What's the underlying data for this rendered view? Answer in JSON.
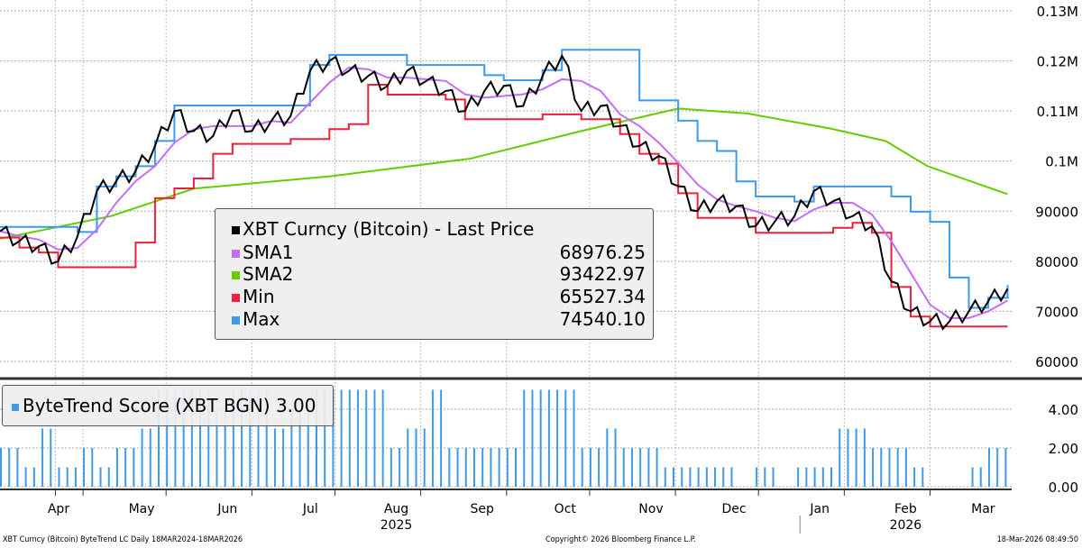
{
  "chart_data": {
    "type": "line",
    "title": "XBT Curncy (Bitcoin) ByteTrend LC Daily 18MAR2024-18MAR2026",
    "x_unit": "days from 18-Mar-2025",
    "price_axis": {
      "ylim": [
        57000,
        133000
      ],
      "ticks": [
        {
          "v": 130000,
          "label": "0.13M"
        },
        {
          "v": 120000,
          "label": "0.12M"
        },
        {
          "v": 110000,
          "label": "0.11M"
        },
        {
          "v": 100000,
          "label": "0.1M"
        },
        {
          "v": 90000,
          "label": "90000"
        },
        {
          "v": 80000,
          "label": "80000"
        },
        {
          "v": 70000,
          "label": "70000"
        },
        {
          "v": 60000,
          "label": "60000"
        }
      ]
    },
    "score_axis": {
      "ylim": [
        0,
        5.4
      ],
      "ticks": [
        {
          "v": 4,
          "label": "4.00"
        },
        {
          "v": 2,
          "label": "2.00"
        },
        {
          "v": 0,
          "label": "0.00"
        }
      ]
    },
    "months": [
      {
        "d": 14,
        "label": "Apr"
      },
      {
        "d": 44,
        "label": "May"
      },
      {
        "d": 75,
        "label": "Jun"
      },
      {
        "d": 105,
        "label": "Jul"
      },
      {
        "d": 136,
        "label": "Aug"
      },
      {
        "d": 167,
        "label": "Sep"
      },
      {
        "d": 197,
        "label": "Oct"
      },
      {
        "d": 228,
        "label": "Nov"
      },
      {
        "d": 258,
        "label": "Dec"
      },
      {
        "d": 289,
        "label": "Jan"
      },
      {
        "d": 320,
        "label": "Feb"
      },
      {
        "d": 348,
        "label": "Mar"
      }
    ],
    "years": [
      {
        "d": 136,
        "label": "2025"
      },
      {
        "d": 320,
        "label": "2026"
      }
    ],
    "year_divider_day": 289,
    "price": {
      "name": "XBT Curncy (Bitcoin) - Last Price",
      "color": "#000000",
      "step_days": 7,
      "values": [
        86000,
        84000,
        83000,
        80000,
        85000,
        94000,
        96000,
        98000,
        103000,
        110000,
        106000,
        105000,
        110000,
        106000,
        108000,
        109000,
        118000,
        120000,
        118000,
        117000,
        115000,
        118000,
        116000,
        114000,
        110000,
        114000,
        115000,
        111000,
        117000,
        121000,
        110000,
        111000,
        107000,
        103000,
        101000,
        95000,
        90000,
        92000,
        91000,
        87000,
        88000,
        89000,
        94000,
        92000,
        89000,
        87000,
        76000,
        70000,
        68000,
        68000,
        70000,
        72000,
        74500
      ]
    },
    "sma1": {
      "name": "SMA1",
      "value": "68976.25",
      "color": "#c36ef5",
      "window_points": 3
    },
    "sma2": {
      "name": "SMA2",
      "value": "93422.97",
      "color": "#66cc00",
      "points": [
        [
          0,
          84500
        ],
        [
          40,
          89000
        ],
        [
          70,
          94500
        ],
        [
          120,
          97000
        ],
        [
          170,
          100500
        ],
        [
          210,
          106000
        ],
        [
          245,
          110500
        ],
        [
          270,
          109500
        ],
        [
          300,
          106500
        ],
        [
          320,
          104000
        ],
        [
          335,
          99000
        ],
        [
          364,
          93400
        ]
      ]
    },
    "min": {
      "name": "Min",
      "value": "65527.34",
      "color": "#f0203c",
      "window_points": 4
    },
    "max": {
      "name": "Max",
      "value": "74540.10",
      "color": "#3d9be9",
      "window_points": 4
    },
    "score": {
      "name": "ByteTrend Score (XBT BGN) 3.00",
      "color": "#3d9be9",
      "step_days": 7,
      "values": [
        2,
        1,
        3,
        1,
        2,
        1,
        2,
        3,
        5,
        5,
        5,
        4,
        5,
        5,
        3,
        4,
        5,
        5,
        5,
        5,
        2,
        3,
        5,
        2,
        2,
        2,
        2,
        5,
        5,
        5,
        2,
        3,
        2,
        2,
        1,
        1,
        1,
        1,
        0,
        1,
        0,
        1,
        1,
        3,
        3,
        2,
        2,
        1,
        0,
        0,
        1,
        2,
        3
      ]
    }
  },
  "footer": {
    "left": "XBT Curncy (Bitcoin) ByteTrend LC Daily 18MAR2024-18MAR2026",
    "center": "Copyright© 2026 Bloomberg Finance L.P.",
    "right": "18-Mar-2026 08:49:50"
  }
}
